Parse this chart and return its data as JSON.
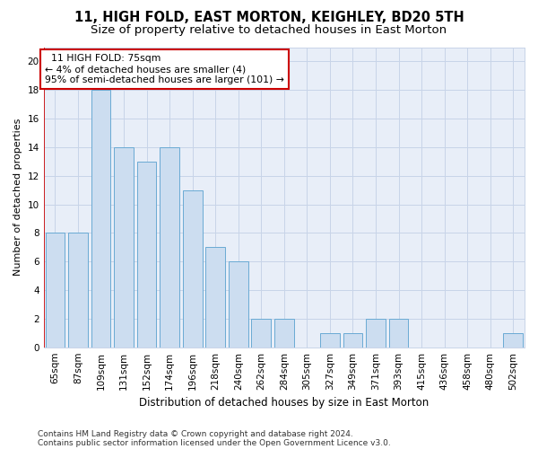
{
  "title1": "11, HIGH FOLD, EAST MORTON, KEIGHLEY, BD20 5TH",
  "title2": "Size of property relative to detached houses in East Morton",
  "xlabel": "Distribution of detached houses by size in East Morton",
  "ylabel": "Number of detached properties",
  "categories": [
    "65sqm",
    "87sqm",
    "109sqm",
    "131sqm",
    "152sqm",
    "174sqm",
    "196sqm",
    "218sqm",
    "240sqm",
    "262sqm",
    "284sqm",
    "305sqm",
    "327sqm",
    "349sqm",
    "371sqm",
    "393sqm",
    "415sqm",
    "436sqm",
    "458sqm",
    "480sqm",
    "502sqm"
  ],
  "values": [
    8,
    8,
    18,
    14,
    13,
    14,
    11,
    7,
    6,
    2,
    2,
    0,
    1,
    1,
    2,
    2,
    0,
    0,
    0,
    0,
    1
  ],
  "bar_color": "#ccddf0",
  "bar_edge_color": "#6aaad4",
  "annotation_box_color": "#ffffff",
  "annotation_box_edge_color": "#cc0000",
  "annotation_line1": "  11 HIGH FOLD: 75sqm",
  "annotation_line2": "← 4% of detached houses are smaller (4)",
  "annotation_line3": "95% of semi-detached houses are larger (101) →",
  "ylim": [
    0,
    21
  ],
  "yticks": [
    0,
    2,
    4,
    6,
    8,
    10,
    12,
    14,
    16,
    18,
    20
  ],
  "grid_color": "#c8d4e8",
  "bg_color": "#e8eef8",
  "footnote1": "Contains HM Land Registry data © Crown copyright and database right 2024.",
  "footnote2": "Contains public sector information licensed under the Open Government Licence v3.0.",
  "title1_fontsize": 10.5,
  "title2_fontsize": 9.5,
  "xlabel_fontsize": 8.5,
  "ylabel_fontsize": 8,
  "tick_fontsize": 7.5,
  "annotation_fontsize": 7.8,
  "footnote_fontsize": 6.5,
  "red_line_x": -0.5
}
